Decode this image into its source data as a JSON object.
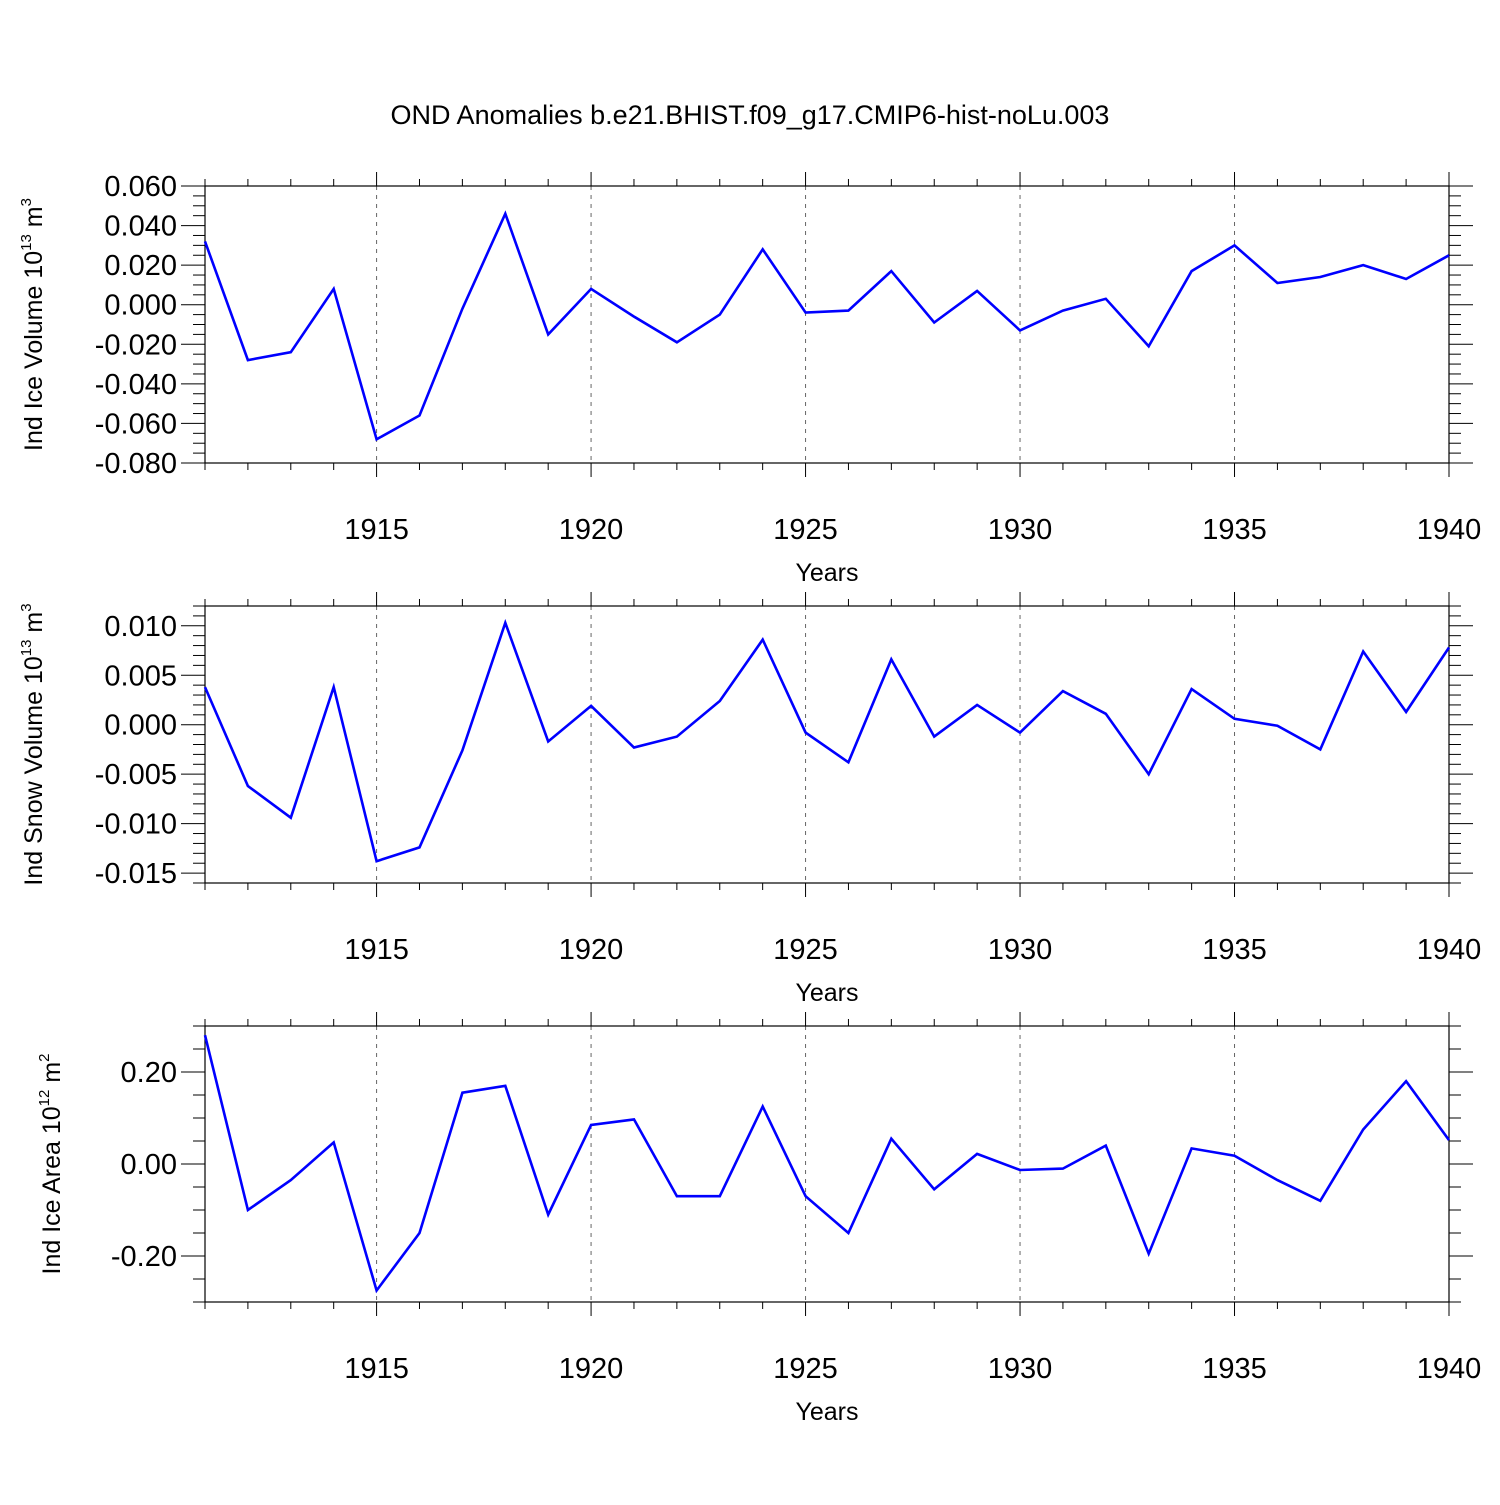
{
  "chart_data": {
    "title": "OND Anomalies b.e21.BHIST.f09_g17.CMIP6-hist-noLu.003",
    "type": "line",
    "line_color": "#0000ff",
    "x": [
      1911,
      1912,
      1913,
      1914,
      1915,
      1916,
      1917,
      1918,
      1919,
      1920,
      1921,
      1922,
      1923,
      1924,
      1925,
      1926,
      1927,
      1928,
      1929,
      1930,
      1931,
      1932,
      1933,
      1934,
      1935,
      1936,
      1937,
      1938,
      1939,
      1940
    ],
    "xlim": [
      1911,
      1940
    ],
    "x_ticks": [
      1915,
      1920,
      1925,
      1930,
      1935,
      1940
    ],
    "x_tick_labels": [
      "1915",
      "1920",
      "1925",
      "1930",
      "1935",
      "1940"
    ],
    "xlabel": "Years",
    "panels": [
      {
        "name": "ice-volume",
        "ylabel_main": "Ind Ice Volume 10",
        "ylabel_exp": "13",
        "ylabel_unit": " m",
        "ylabel_unit_exp": "3",
        "ylim": [
          -0.08,
          0.06
        ],
        "y_ticks": [
          0.06,
          0.04,
          0.02,
          0.0,
          -0.02,
          -0.04,
          -0.06,
          -0.08
        ],
        "y_tick_labels": [
          "0.060",
          "0.040",
          "0.020",
          "0.000",
          "-0.020",
          "-0.040",
          "-0.060",
          "-0.080"
        ],
        "values": [
          0.032,
          -0.028,
          -0.024,
          0.008,
          -0.068,
          -0.056,
          -0.002,
          0.046,
          -0.015,
          0.008,
          -0.006,
          -0.019,
          -0.005,
          0.028,
          -0.004,
          -0.003,
          0.017,
          -0.009,
          0.007,
          -0.013,
          -0.003,
          0.003,
          -0.021,
          0.017,
          0.03,
          0.011,
          0.014,
          0.02,
          0.013,
          0.025
        ]
      },
      {
        "name": "snow-volume",
        "ylabel_main": "Ind Snow Volume 10",
        "ylabel_exp": "13",
        "ylabel_unit": " m",
        "ylabel_unit_exp": "3",
        "ylim": [
          -0.016,
          0.012
        ],
        "y_ticks": [
          0.01,
          0.005,
          0.0,
          -0.005,
          -0.01,
          -0.015
        ],
        "y_tick_labels": [
          "0.010",
          "0.005",
          "0.000",
          "-0.005",
          "-0.010",
          "-0.015"
        ],
        "values": [
          0.0038,
          -0.0062,
          -0.0094,
          0.0038,
          -0.0138,
          -0.0124,
          -0.0026,
          0.0103,
          -0.0017,
          0.0019,
          -0.0023,
          -0.0012,
          0.0024,
          0.0086,
          -0.0008,
          -0.0038,
          0.0066,
          -0.0012,
          0.002,
          -0.0008,
          0.0034,
          0.0011,
          -0.005,
          0.0036,
          0.0006,
          -0.0001,
          -0.0025,
          0.0074,
          0.0013,
          0.0078
        ]
      },
      {
        "name": "ice-area",
        "ylabel_main": "Ind Ice Area 10",
        "ylabel_exp": "12",
        "ylabel_unit": " m",
        "ylabel_unit_exp": "2",
        "ylim": [
          -0.3,
          0.3
        ],
        "y_ticks": [
          0.2,
          0.0,
          -0.2
        ],
        "y_tick_labels": [
          "0.20",
          "0.00",
          "-0.20"
        ],
        "values": [
          0.28,
          -0.1,
          -0.035,
          0.047,
          -0.275,
          -0.15,
          0.155,
          0.17,
          -0.11,
          0.085,
          0.097,
          -0.07,
          -0.07,
          0.125,
          -0.07,
          -0.15,
          0.055,
          -0.055,
          0.022,
          -0.013,
          -0.01,
          0.04,
          -0.195,
          0.034,
          0.018,
          -0.035,
          -0.08,
          0.075,
          0.18,
          0.052
        ]
      }
    ]
  }
}
